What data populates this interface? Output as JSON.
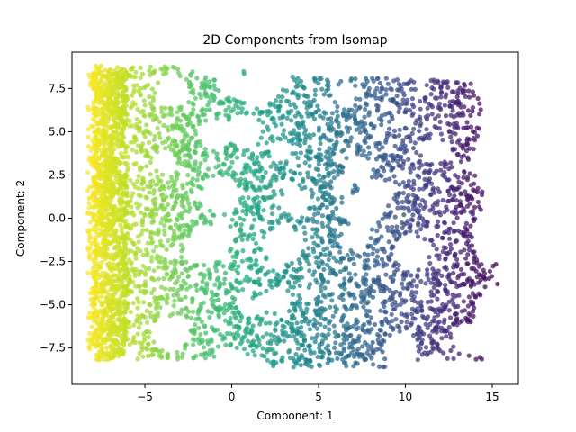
{
  "chart_data": {
    "type": "scatter",
    "title": "2D Components from Isomap",
    "xlabel": "Component: 1",
    "ylabel": "Component: 2",
    "xlim": [
      -9.2,
      16.5
    ],
    "ylim": [
      -9.6,
      9.6
    ],
    "xticks": [
      -5,
      0,
      5,
      10,
      15
    ],
    "yticks": [
      -7.5,
      -5.0,
      -2.5,
      0.0,
      2.5,
      5.0,
      7.5
    ],
    "xtick_labels": [
      "−5",
      "0",
      "5",
      "10",
      "15"
    ],
    "ytick_labels": [
      "−7.5",
      "−5.0",
      "−2.5",
      "0.0",
      "2.5",
      "5.0",
      "7.5"
    ],
    "colormap": "viridis",
    "color_encoding": "reversed along Component: 1 (yellow at low x, purple at high x)",
    "marker_alpha": 0.75,
    "grid": false,
    "legend": "none",
    "point_cloud": {
      "approx_point_count": 5000,
      "x_range": [
        -8.3,
        15.3
      ],
      "y_range": [
        -8.8,
        9.1
      ],
      "shape": "roughly rectangular band with many ring-shaped voids",
      "left_edge_dense_band": [
        -8.0,
        -6.0
      ],
      "right_tail_point": [
        15.3,
        -3.8
      ]
    }
  }
}
